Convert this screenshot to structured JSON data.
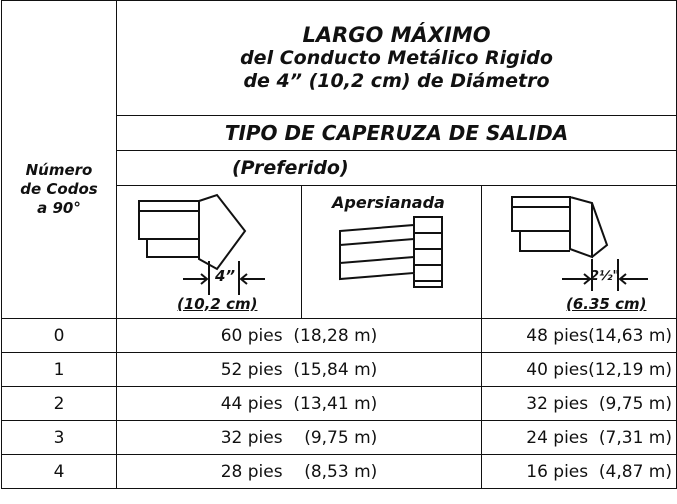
{
  "header": {
    "title": "LARGO MÁXIMO",
    "subtitle_lines": [
      "del Conducto Metálico Rigido",
      "de 4” (10,2 cm) de Diámetro"
    ]
  },
  "hood_type": "TIPO DE CAPERUZA DE SALIDA",
  "preferred": "(Preferido)",
  "row_header": [
    "Número",
    "de Codos",
    "a 90°"
  ],
  "hoods": [
    {
      "dimension": "4”",
      "metric": "(10,2 cm)"
    },
    {
      "label": "Apersianada"
    },
    {
      "dimension": "2½\"",
      "metric": "(6.35 cm)"
    }
  ],
  "table": {
    "rows": [
      [
        "0",
        "60 pies  (18,28 m)",
        "48 pies(14,63 m)"
      ],
      [
        "1",
        "52 pies  (15,84 m)",
        "40 pies(12,19 m)"
      ],
      [
        "2",
        "44 pies  (13,41 m)",
        "32 pies  (9,75 m)"
      ],
      [
        "3",
        "32 pies    (9,75 m)",
        "24 pies  (7,31 m)"
      ],
      [
        "4",
        "28 pies    (8,53 m)",
        "16 pies  (4,87 m)"
      ]
    ]
  }
}
